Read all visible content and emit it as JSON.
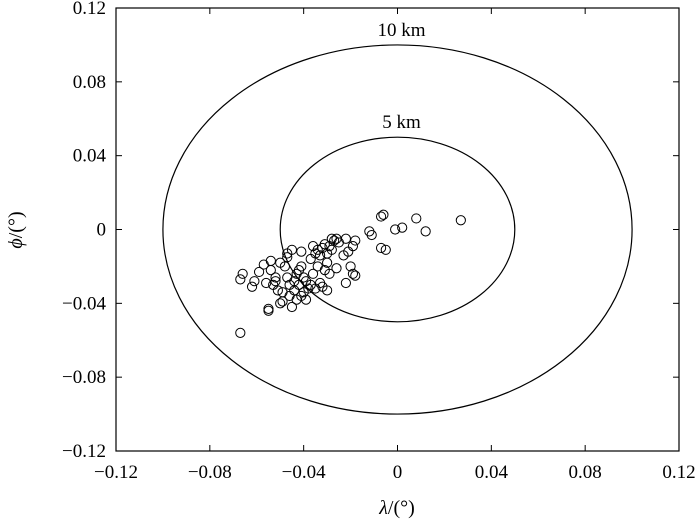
{
  "chart_data": {
    "type": "scatter",
    "title": "",
    "xlabel": {
      "symbol": "λ",
      "unit": "/(°)"
    },
    "ylabel": {
      "symbol": "ϕ",
      "unit": "/(°)"
    },
    "xlim": [
      -0.12,
      0.12
    ],
    "ylim": [
      -0.12,
      0.12
    ],
    "x_ticks": [
      -0.12,
      -0.08,
      -0.04,
      0,
      0.04,
      0.08,
      0.12
    ],
    "y_ticks": [
      -0.12,
      -0.08,
      -0.04,
      0,
      0.04,
      0.08,
      0.12
    ],
    "x_tick_labels": [
      "−0.12",
      "−0.08",
      "−0.04",
      "0",
      "0.04",
      "0.08",
      "0.12"
    ],
    "y_tick_labels": [
      "−0.12",
      "−0.08",
      "−0.04",
      "0",
      "0.04",
      "0.08",
      "0.12"
    ],
    "grid": false,
    "marker": "open-circle",
    "circles": [
      {
        "label": "10 km",
        "center": [
          0,
          0
        ],
        "rx": 0.1,
        "ry": 0.1
      },
      {
        "label": "5 km",
        "center": [
          0,
          0
        ],
        "rx": 0.05,
        "ry": 0.05
      }
    ],
    "points": [
      [
        -0.067,
        -0.056
      ],
      [
        -0.066,
        -0.024
      ],
      [
        -0.067,
        -0.027
      ],
      [
        -0.062,
        -0.031
      ],
      [
        -0.061,
        -0.028
      ],
      [
        -0.059,
        -0.023
      ],
      [
        -0.057,
        -0.019
      ],
      [
        -0.056,
        -0.029
      ],
      [
        -0.055,
        -0.043
      ],
      [
        -0.055,
        -0.044
      ],
      [
        -0.054,
        -0.017
      ],
      [
        -0.054,
        -0.022
      ],
      [
        -0.053,
        -0.03
      ],
      [
        -0.052,
        -0.026
      ],
      [
        -0.052,
        -0.028
      ],
      [
        -0.051,
        -0.033
      ],
      [
        -0.05,
        -0.04
      ],
      [
        -0.05,
        -0.018
      ],
      [
        -0.049,
        -0.034
      ],
      [
        -0.049,
        -0.039
      ],
      [
        -0.048,
        -0.02
      ],
      [
        -0.047,
        -0.015
      ],
      [
        -0.047,
        -0.013
      ],
      [
        -0.047,
        -0.026
      ],
      [
        -0.046,
        -0.03
      ],
      [
        -0.046,
        -0.036
      ],
      [
        -0.045,
        -0.042
      ],
      [
        -0.045,
        -0.011
      ],
      [
        -0.044,
        -0.028
      ],
      [
        -0.044,
        -0.033
      ],
      [
        -0.043,
        -0.024
      ],
      [
        -0.043,
        -0.038
      ],
      [
        -0.042,
        -0.022
      ],
      [
        -0.042,
        -0.03
      ],
      [
        -0.041,
        -0.012
      ],
      [
        -0.041,
        -0.02
      ],
      [
        -0.041,
        -0.036
      ],
      [
        -0.04,
        -0.026
      ],
      [
        -0.04,
        -0.034
      ],
      [
        -0.039,
        -0.038
      ],
      [
        -0.039,
        -0.028
      ],
      [
        -0.038,
        -0.032
      ],
      [
        -0.037,
        -0.016
      ],
      [
        -0.037,
        -0.03
      ],
      [
        -0.036,
        -0.009
      ],
      [
        -0.036,
        -0.024
      ],
      [
        -0.035,
        -0.013
      ],
      [
        -0.035,
        -0.032
      ],
      [
        -0.034,
        -0.011
      ],
      [
        -0.034,
        -0.02
      ],
      [
        -0.033,
        -0.014
      ],
      [
        -0.033,
        -0.029
      ],
      [
        -0.032,
        -0.01
      ],
      [
        -0.032,
        -0.031
      ],
      [
        -0.031,
        -0.022
      ],
      [
        -0.031,
        -0.008
      ],
      [
        -0.03,
        -0.013
      ],
      [
        -0.03,
        -0.018
      ],
      [
        -0.03,
        -0.033
      ],
      [
        -0.029,
        -0.009
      ],
      [
        -0.029,
        -0.024
      ],
      [
        -0.028,
        -0.005
      ],
      [
        -0.028,
        -0.011
      ],
      [
        -0.027,
        -0.006
      ],
      [
        -0.026,
        -0.021
      ],
      [
        -0.026,
        -0.005
      ],
      [
        -0.025,
        -0.007
      ],
      [
        -0.023,
        -0.014
      ],
      [
        -0.022,
        -0.029
      ],
      [
        -0.022,
        -0.005
      ],
      [
        -0.021,
        -0.012
      ],
      [
        -0.02,
        -0.02
      ],
      [
        -0.019,
        -0.024
      ],
      [
        -0.019,
        -0.009
      ],
      [
        -0.018,
        -0.025
      ],
      [
        -0.018,
        -0.006
      ],
      [
        -0.012,
        -0.001
      ],
      [
        -0.011,
        -0.003
      ],
      [
        -0.007,
        -0.01
      ],
      [
        -0.007,
        0.007
      ],
      [
        -0.006,
        0.008
      ],
      [
        -0.005,
        -0.011
      ],
      [
        -0.001,
        0
      ],
      [
        0.002,
        0.001
      ],
      [
        0.008,
        0.006
      ],
      [
        0.012,
        -0.001
      ],
      [
        0.027,
        0.005
      ]
    ]
  }
}
